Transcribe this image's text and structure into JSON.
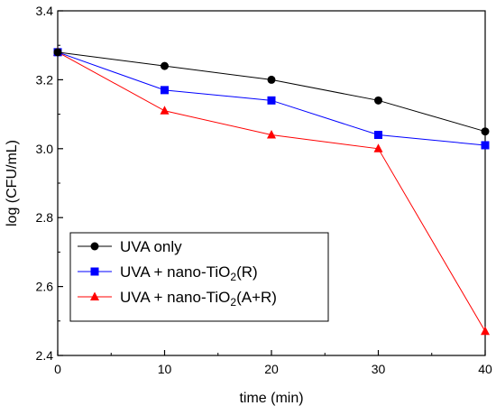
{
  "chart_data": {
    "type": "line",
    "xlabel": "time (min)",
    "ylabel": "log (CFU/mL)",
    "x": [
      0,
      10,
      20,
      30,
      40
    ],
    "xlim": [
      0,
      40
    ],
    "ylim": [
      2.4,
      3.4
    ],
    "x_ticks": [
      "0",
      "10",
      "20",
      "30",
      "40"
    ],
    "y_ticks": [
      "2.4",
      "2.6",
      "2.8",
      "3.0",
      "3.2",
      "3.4"
    ],
    "grid": false,
    "legend_position": "bottom-left",
    "series": [
      {
        "name": "UVA only",
        "legend_parts": [
          "UVA only"
        ],
        "marker": "circle",
        "color": "#000000",
        "values": [
          3.28,
          3.24,
          3.2,
          3.14,
          3.05
        ]
      },
      {
        "name": "UVA + nano-TiO2(R)",
        "legend_parts": [
          "UVA + nano-TiO",
          "2",
          "(R)"
        ],
        "marker": "square",
        "color": "#0000ff",
        "values": [
          3.28,
          3.17,
          3.14,
          3.04,
          3.01
        ]
      },
      {
        "name": "UVA + nano-TiO2(A+R)",
        "legend_parts": [
          "UVA + nano-TiO",
          "2",
          "(A+R)"
        ],
        "marker": "triangle",
        "color": "#ff0000",
        "values": [
          3.28,
          3.11,
          3.04,
          3.0,
          2.47
        ]
      }
    ]
  }
}
